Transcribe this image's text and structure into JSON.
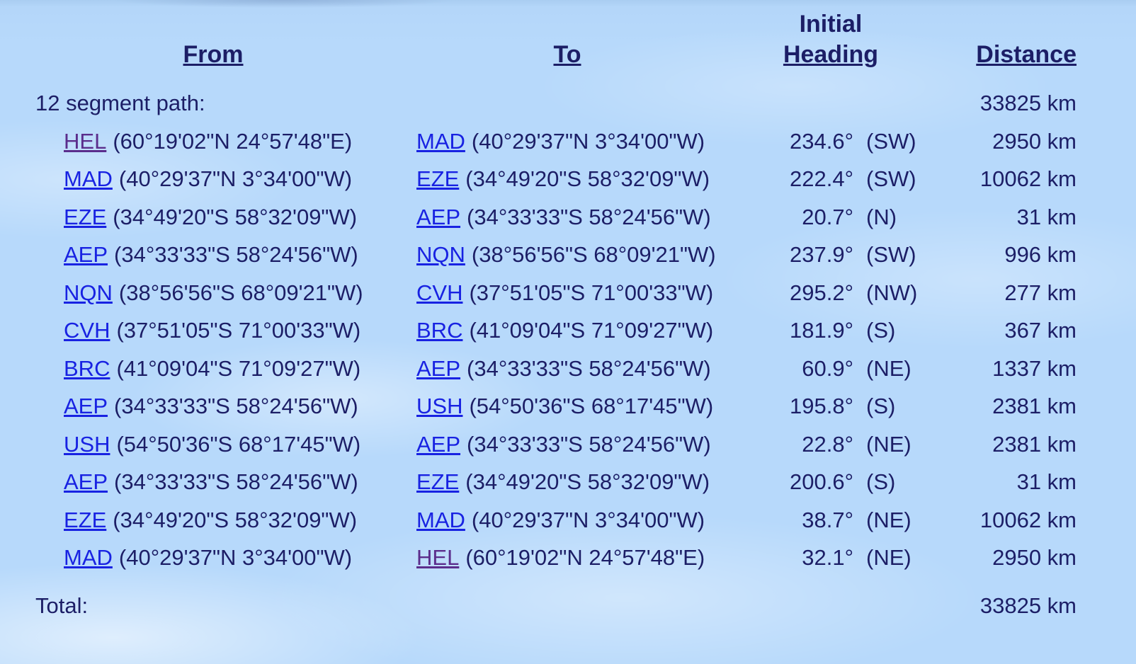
{
  "columns": {
    "from": "From",
    "to": "To",
    "initial": "Initial",
    "heading": "Heading",
    "distance": "Distance"
  },
  "summary": {
    "label": "12 segment path:",
    "distance": "33825 km"
  },
  "total_row": {
    "label": "Total:",
    "distance": "33825 km"
  },
  "colors": {
    "text_navy": "#1c1e66",
    "link_blue": "#1822e2",
    "link_visited_purple": "#5b2d8c",
    "sky_base": "#b7d9fb"
  },
  "segments": [
    {
      "from": {
        "code": "HEL",
        "coords": "(60°19'02\"N 24°57'48\"E)",
        "visited": true
      },
      "to": {
        "code": "MAD",
        "coords": "(40°29'37\"N 3°34'00\"W)",
        "visited": false
      },
      "heading_deg": "234.6°",
      "heading_dir": "(SW)",
      "distance": "2950 km"
    },
    {
      "from": {
        "code": "MAD",
        "coords": "(40°29'37\"N 3°34'00\"W)",
        "visited": false
      },
      "to": {
        "code": "EZE",
        "coords": "(34°49'20\"S 58°32'09\"W)",
        "visited": false
      },
      "heading_deg": "222.4°",
      "heading_dir": "(SW)",
      "distance": "10062 km"
    },
    {
      "from": {
        "code": "EZE",
        "coords": "(34°49'20\"S 58°32'09\"W)",
        "visited": false
      },
      "to": {
        "code": "AEP",
        "coords": "(34°33'33\"S 58°24'56\"W)",
        "visited": false
      },
      "heading_deg": "20.7°",
      "heading_dir": "(N)",
      "distance": "31 km"
    },
    {
      "from": {
        "code": "AEP",
        "coords": "(34°33'33\"S 58°24'56\"W)",
        "visited": false
      },
      "to": {
        "code": "NQN",
        "coords": "(38°56'56\"S 68°09'21\"W)",
        "visited": false
      },
      "heading_deg": "237.9°",
      "heading_dir": "(SW)",
      "distance": "996 km"
    },
    {
      "from": {
        "code": "NQN",
        "coords": "(38°56'56\"S 68°09'21\"W)",
        "visited": false
      },
      "to": {
        "code": "CVH",
        "coords": "(37°51'05\"S 71°00'33\"W)",
        "visited": false
      },
      "heading_deg": "295.2°",
      "heading_dir": "(NW)",
      "distance": "277 km"
    },
    {
      "from": {
        "code": "CVH",
        "coords": "(37°51'05\"S 71°00'33\"W)",
        "visited": false
      },
      "to": {
        "code": "BRC",
        "coords": "(41°09'04\"S 71°09'27\"W)",
        "visited": false
      },
      "heading_deg": "181.9°",
      "heading_dir": "(S)",
      "distance": "367 km"
    },
    {
      "from": {
        "code": "BRC",
        "coords": "(41°09'04\"S 71°09'27\"W)",
        "visited": false
      },
      "to": {
        "code": "AEP",
        "coords": "(34°33'33\"S 58°24'56\"W)",
        "visited": false
      },
      "heading_deg": "60.9°",
      "heading_dir": "(NE)",
      "distance": "1337 km"
    },
    {
      "from": {
        "code": "AEP",
        "coords": "(34°33'33\"S 58°24'56\"W)",
        "visited": false
      },
      "to": {
        "code": "USH",
        "coords": "(54°50'36\"S 68°17'45\"W)",
        "visited": false
      },
      "heading_deg": "195.8°",
      "heading_dir": "(S)",
      "distance": "2381 km"
    },
    {
      "from": {
        "code": "USH",
        "coords": "(54°50'36\"S 68°17'45\"W)",
        "visited": false
      },
      "to": {
        "code": "AEP",
        "coords": "(34°33'33\"S 58°24'56\"W)",
        "visited": false
      },
      "heading_deg": "22.8°",
      "heading_dir": "(NE)",
      "distance": "2381 km"
    },
    {
      "from": {
        "code": "AEP",
        "coords": "(34°33'33\"S 58°24'56\"W)",
        "visited": false
      },
      "to": {
        "code": "EZE",
        "coords": "(34°49'20\"S 58°32'09\"W)",
        "visited": false
      },
      "heading_deg": "200.6°",
      "heading_dir": "(S)",
      "distance": "31 km"
    },
    {
      "from": {
        "code": "EZE",
        "coords": "(34°49'20\"S 58°32'09\"W)",
        "visited": false
      },
      "to": {
        "code": "MAD",
        "coords": "(40°29'37\"N 3°34'00\"W)",
        "visited": false
      },
      "heading_deg": "38.7°",
      "heading_dir": "(NE)",
      "distance": "10062 km"
    },
    {
      "from": {
        "code": "MAD",
        "coords": "(40°29'37\"N 3°34'00\"W)",
        "visited": false
      },
      "to": {
        "code": "HEL",
        "coords": "(60°19'02\"N 24°57'48\"E)",
        "visited": true
      },
      "heading_deg": "32.1°",
      "heading_dir": "(NE)",
      "distance": "2950 km"
    }
  ]
}
